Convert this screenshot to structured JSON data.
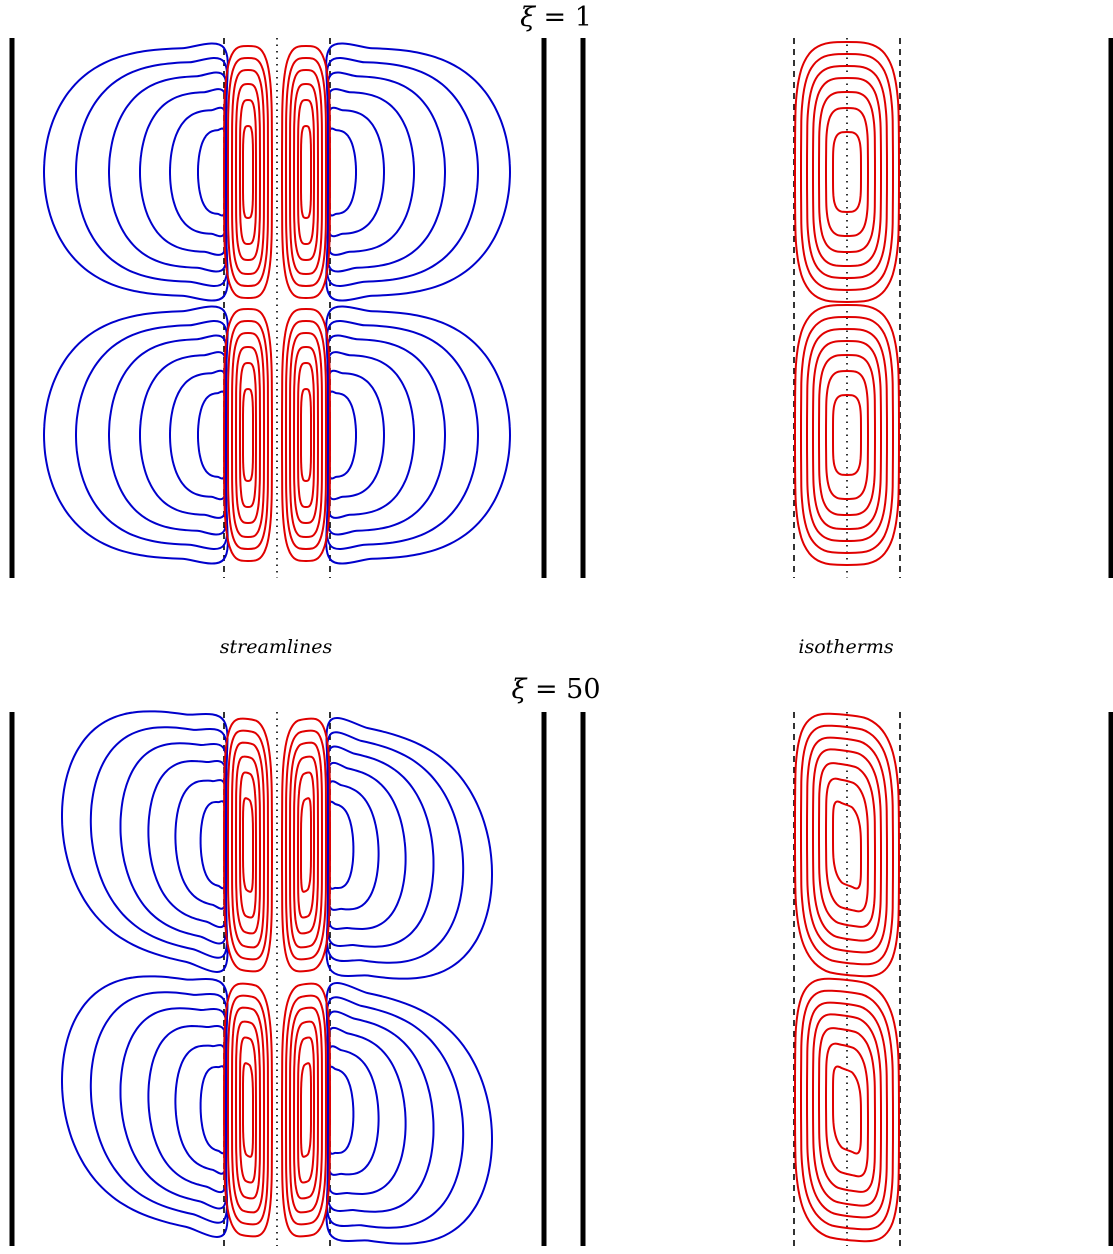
{
  "top_row": {
    "title_symbol": "ξ",
    "title_value": "= 1",
    "left_caption": "streamlines",
    "right_caption": "isotherms"
  },
  "bottom_row": {
    "title_symbol": "ξ",
    "title_value": "= 50"
  },
  "colors": {
    "wall": "#000000",
    "outer_streamlines": "#0000cc",
    "inner_streamlines": "#e00000",
    "isotherms": "#e00000",
    "guide_lines": "#000000"
  }
}
